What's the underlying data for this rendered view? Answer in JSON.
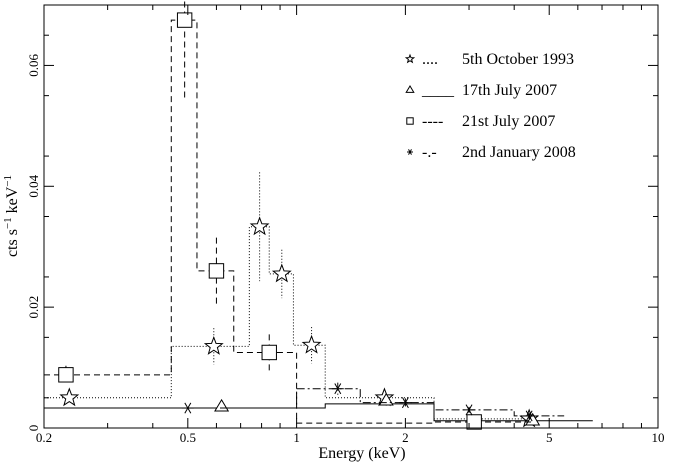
{
  "chart_data": {
    "type": "line",
    "xlabel": "Energy (keV)",
    "ylabel_parts": {
      "a": "cts s",
      "a_sup": "−1",
      "b": " keV",
      "b_sup": "−1"
    },
    "x_scale": "log",
    "xlim": [
      0.2,
      10
    ],
    "ylim": [
      0,
      0.07
    ],
    "x_ticks": [
      {
        "value": 0.2,
        "label": "0.2"
      },
      {
        "value": 0.5,
        "label": "0.5"
      },
      {
        "value": 1,
        "label": "1"
      },
      {
        "value": 2,
        "label": "2"
      },
      {
        "value": 5,
        "label": "5"
      },
      {
        "value": 10,
        "label": "10"
      }
    ],
    "y_ticks": [
      {
        "value": 0,
        "label": "0"
      },
      {
        "value": 0.02,
        "label": "0.02"
      },
      {
        "value": 0.04,
        "label": "0.04"
      },
      {
        "value": 0.06,
        "label": "0.06"
      }
    ],
    "grid": false,
    "legend_position": "top-right",
    "series": [
      {
        "name": "5th October 1993",
        "legend_prefix": "....",
        "marker": "star",
        "line_style": "dotted",
        "bins": [
          [
            0.2,
            0.45,
            0.005
          ],
          [
            0.45,
            0.67,
            0.0135
          ],
          [
            0.67,
            0.74,
            0.0135
          ],
          [
            0.74,
            0.84,
            0.0333
          ],
          [
            0.84,
            0.98,
            0.0255
          ],
          [
            0.98,
            1.2,
            0.0137
          ],
          [
            1.2,
            2.4,
            0.005
          ],
          [
            2.4,
            4.5,
            0.0015
          ]
        ],
        "points": [
          [
            0.235,
            0.005,
            0
          ],
          [
            0.59,
            0.0135,
            0.003
          ],
          [
            0.79,
            0.0333,
            0.009
          ],
          [
            0.91,
            0.0255,
            0.004
          ],
          [
            1.1,
            0.0137,
            0.003
          ],
          [
            1.75,
            0.005,
            0.001
          ],
          [
            4.4,
            0.0015,
            0.0007
          ]
        ]
      },
      {
        "name": "17th July 2007",
        "legend_prefix": "____",
        "marker": "triangle",
        "line_style": "solid",
        "bins": [
          [
            0.2,
            1.0,
            0.0033
          ],
          [
            1.0,
            1.2,
            0.0033
          ],
          [
            1.2,
            2.4,
            0.004
          ],
          [
            2.4,
            6.6,
            0.0012
          ]
        ],
        "points": [
          [
            0.62,
            0.0035,
            0
          ],
          [
            1.77,
            0.0045,
            0.0008
          ],
          [
            4.5,
            0.0012,
            0.0005
          ]
        ]
      },
      {
        "name": "21st July 2007",
        "legend_prefix": "----",
        "marker": "square",
        "line_style": "dashed",
        "bins": [
          [
            0.2,
            0.45,
            0.0088
          ],
          [
            0.45,
            0.53,
            0.0675
          ],
          [
            0.53,
            0.67,
            0.026
          ],
          [
            0.67,
            1.0,
            0.0125
          ],
          [
            1.0,
            2.4,
            0.0008
          ],
          [
            2.4,
            4.5,
            0.001
          ]
        ],
        "points": [
          [
            0.23,
            0.0088,
            0.0015
          ],
          [
            0.49,
            0.0675,
            0.013
          ],
          [
            0.6,
            0.026,
            0.0055
          ],
          [
            0.84,
            0.0125,
            0.003
          ],
          [
            3.1,
            0.001,
            0.0005
          ]
        ]
      },
      {
        "name": "2nd January 2008",
        "legend_prefix": "-.-",
        "marker": "asterisk",
        "line_style": "dashdot",
        "bins": [
          [
            0.2,
            1.0,
            0.0033
          ],
          [
            1.0,
            1.5,
            0.0065
          ],
          [
            1.5,
            2.4,
            0.0042
          ],
          [
            2.4,
            4.0,
            0.003
          ],
          [
            4.0,
            5.5,
            0.002
          ]
        ],
        "points": [
          [
            0.5,
            0.0033,
            0
          ],
          [
            1.3,
            0.0065,
            0.001
          ],
          [
            2.0,
            0.0042,
            0.0007
          ],
          [
            3.0,
            0.003,
            0.0005
          ],
          [
            4.4,
            0.002,
            0.0005
          ]
        ]
      }
    ]
  }
}
